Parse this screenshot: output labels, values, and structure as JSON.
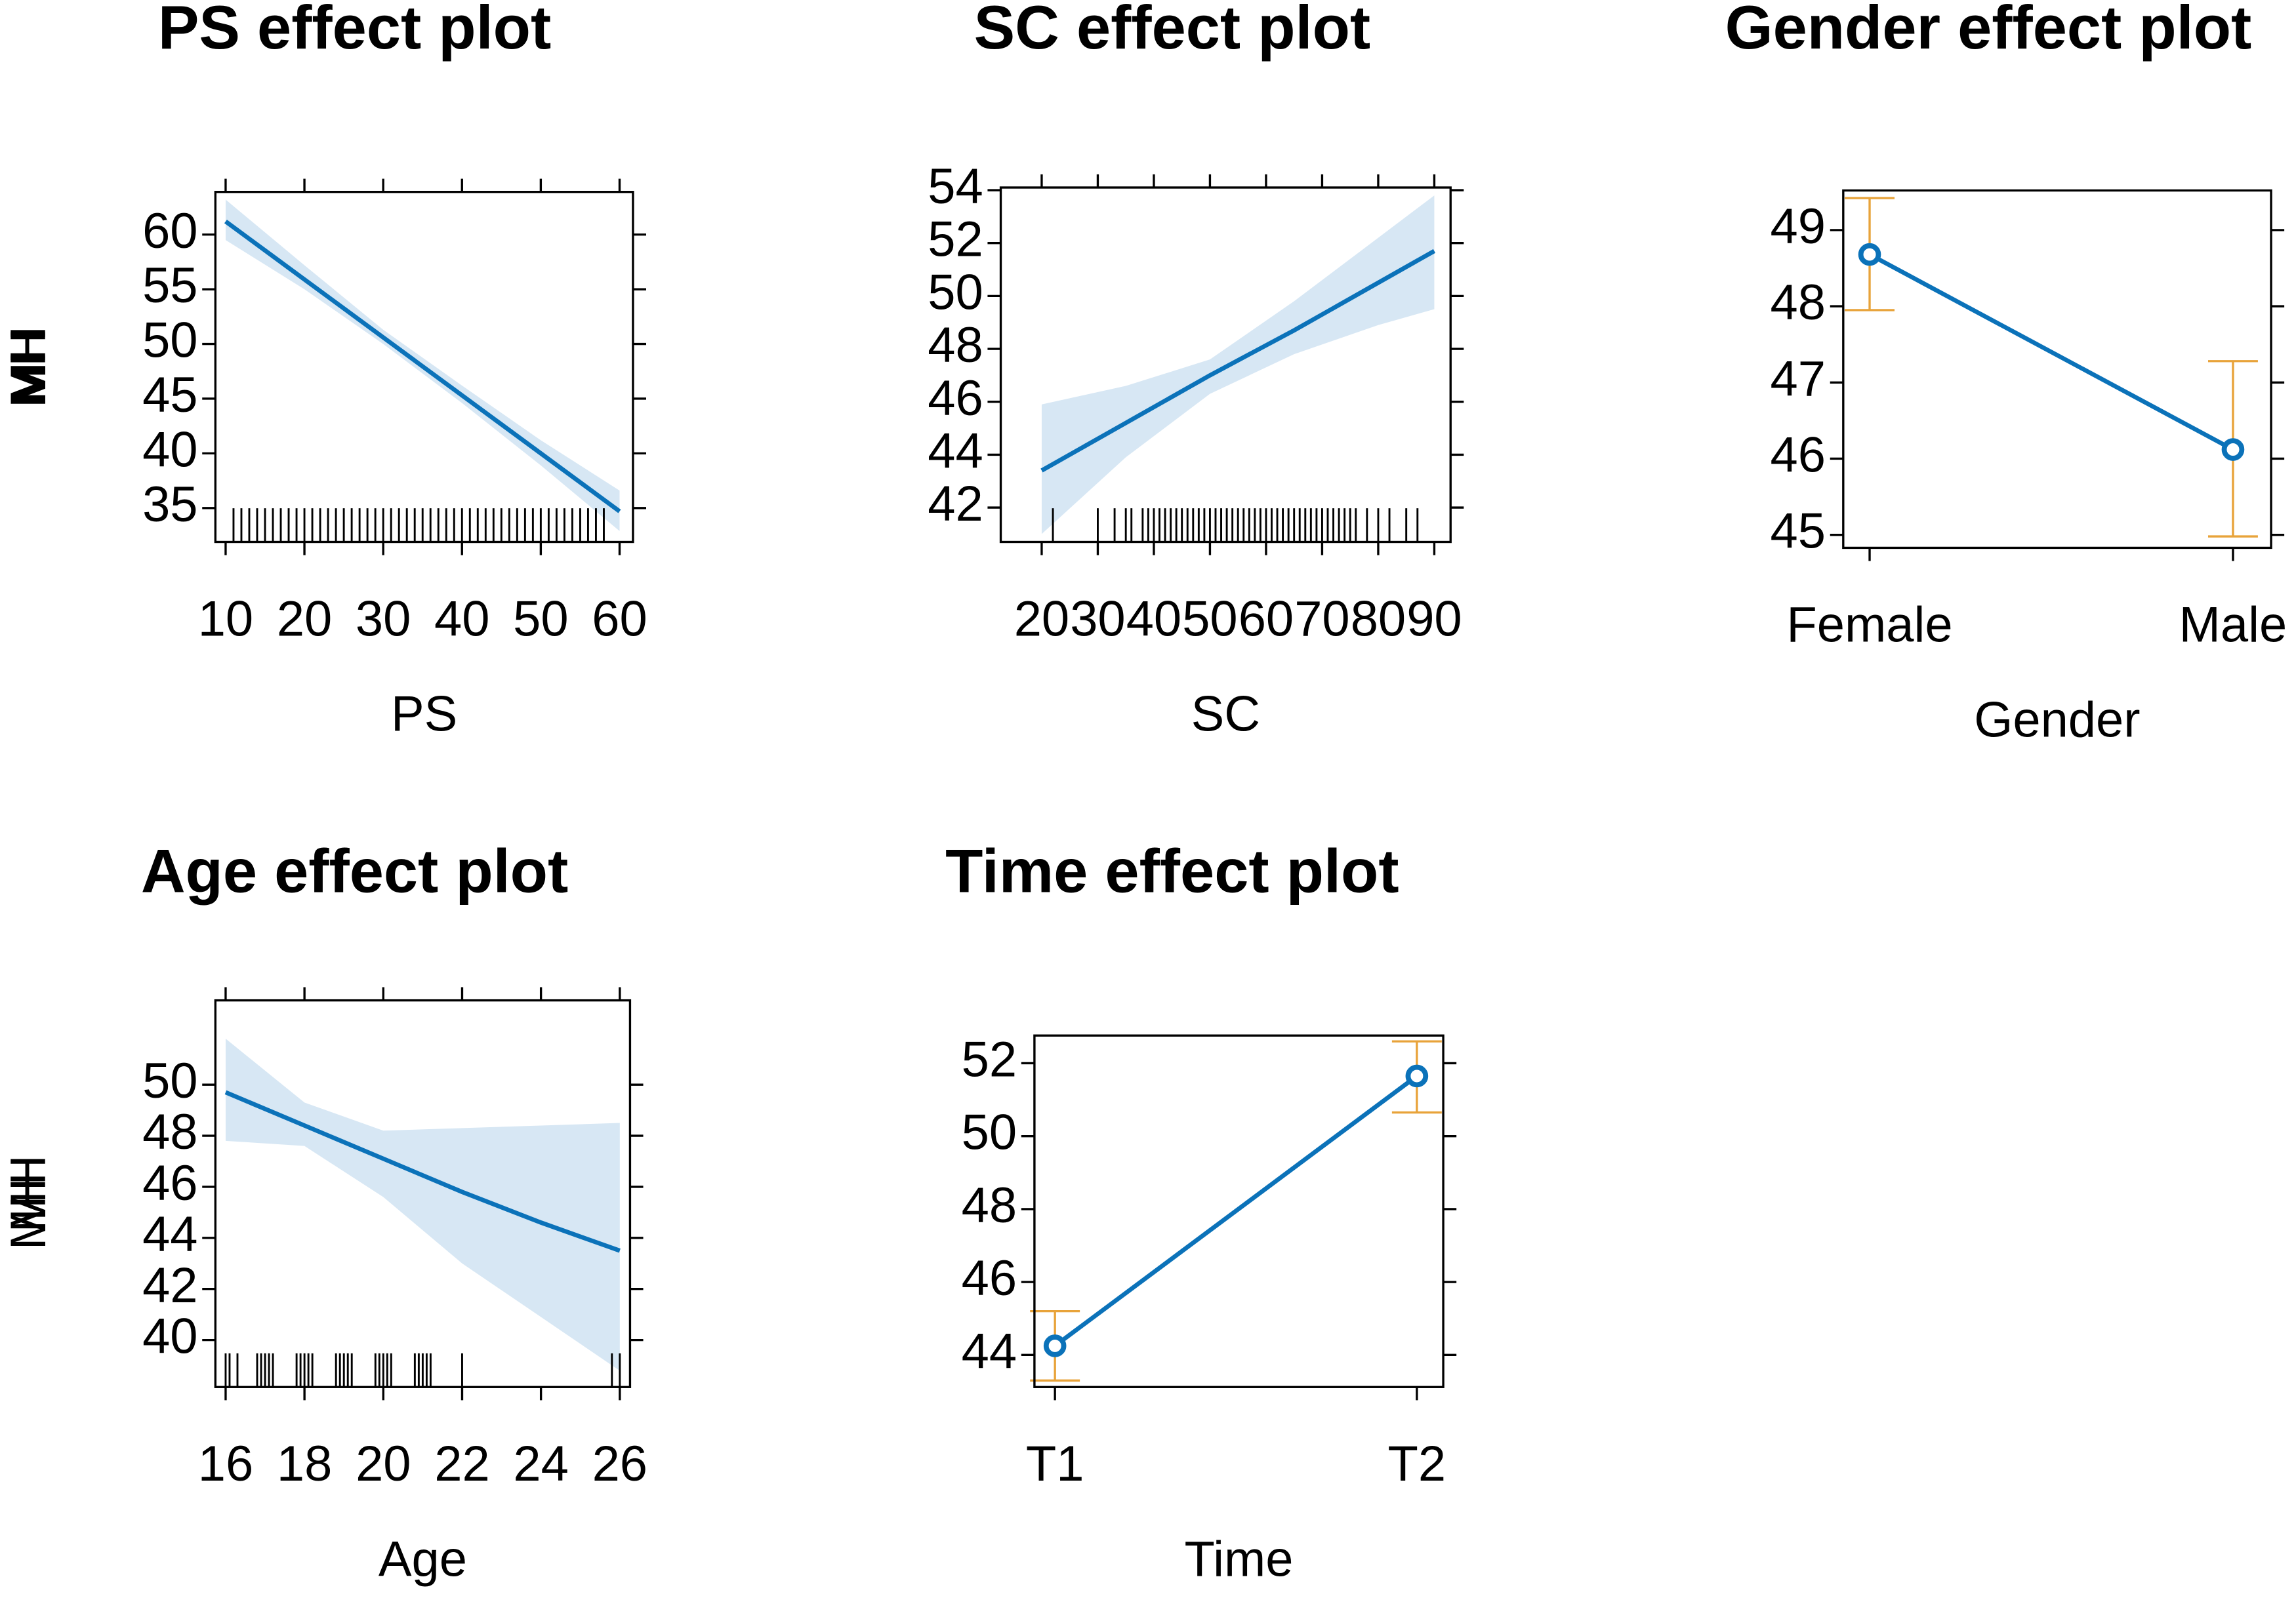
{
  "chart_data": [
    {
      "type": "line",
      "title": "PS effect plot",
      "x_label": "PS",
      "y_label": "MH",
      "x": [
        10,
        20,
        30,
        40,
        50,
        60
      ],
      "values": [
        61.2,
        55.9,
        50.6,
        45.3,
        40.0,
        34.7
      ],
      "lower": [
        59.5,
        55.0,
        50.0,
        44.6,
        38.9,
        32.9
      ],
      "upper": [
        63.2,
        57.2,
        51.3,
        46.2,
        41.2,
        36.6
      ],
      "rug": [
        11,
        12,
        13,
        14,
        15,
        16,
        17,
        18,
        19,
        20,
        21,
        22,
        23,
        24,
        25,
        26,
        27,
        28,
        29,
        30,
        31,
        32,
        33,
        34,
        35,
        36,
        37,
        38,
        39,
        40,
        41,
        42,
        43,
        44,
        45,
        46,
        47,
        48,
        49,
        50,
        51,
        52,
        53,
        54,
        55,
        56,
        57,
        58
      ],
      "xlim": [
        8.7,
        61.7
      ],
      "ylim": [
        31.9,
        63.9
      ],
      "xticks": [
        10,
        20,
        30,
        40,
        50,
        60
      ],
      "yticks": [
        35,
        40,
        45,
        50,
        55,
        60
      ],
      "color": "#0b72b9",
      "band_color": "#d7e7f4"
    },
    {
      "type": "line",
      "title": "SC effect plot",
      "x_label": "SC",
      "y_label": "MH",
      "x": [
        20,
        35,
        50,
        65,
        80,
        90
      ],
      "values": [
        43.4,
        45.2,
        47.0,
        48.7,
        50.5,
        51.7
      ],
      "lower": [
        41.0,
        43.9,
        46.3,
        47.8,
        48.9,
        49.5
      ],
      "upper": [
        45.9,
        46.6,
        47.6,
        49.8,
        52.2,
        53.8
      ],
      "rug": [
        22,
        30,
        33,
        35,
        36,
        38,
        39,
        40,
        41,
        42,
        43,
        44,
        45,
        46,
        47,
        48,
        49,
        50,
        51,
        52,
        53,
        54,
        55,
        56,
        57,
        58,
        59,
        60,
        61,
        62,
        63,
        64,
        65,
        66,
        67,
        68,
        69,
        70,
        71,
        72,
        73,
        74,
        75,
        76,
        78,
        80,
        82,
        85,
        87
      ],
      "xlim": [
        12.7,
        92.9
      ],
      "ylim": [
        40.7,
        54.1
      ],
      "xticks": [
        20,
        30,
        40,
        50,
        60,
        70,
        80,
        90
      ],
      "yticks": [
        42,
        44,
        46,
        48,
        50,
        52,
        54
      ],
      "color": "#0b72b9",
      "band_color": "#d7e7f4"
    },
    {
      "type": "errorbar",
      "title": "Gender effect plot",
      "x_label": "Gender",
      "y_label": "MH",
      "categories": [
        "Female",
        "Male"
      ],
      "values": [
        48.68,
        46.12
      ],
      "lower": [
        47.95,
        44.98
      ],
      "upper": [
        49.42,
        47.28
      ],
      "ylim": [
        44.83,
        49.52
      ],
      "yticks": [
        45,
        46,
        47,
        48,
        49
      ],
      "color": "#0b72b9",
      "errorbar_color": "#e8a33a"
    },
    {
      "type": "line",
      "title": "Age effect plot",
      "x_label": "Age",
      "y_label": "MH",
      "x": [
        16,
        18,
        20,
        22,
        24,
        26
      ],
      "values": [
        49.7,
        48.4,
        47.1,
        45.8,
        44.6,
        43.5
      ],
      "lower": [
        47.8,
        47.6,
        45.6,
        43.0,
        40.9,
        38.8
      ],
      "upper": [
        51.8,
        49.3,
        48.2,
        48.3,
        48.4,
        48.5
      ],
      "rug": [
        16,
        16.1,
        16.3,
        16.8,
        16.9,
        17,
        17.1,
        17.2,
        17.8,
        17.9,
        18,
        18.1,
        18.2,
        18.8,
        18.9,
        19,
        19.1,
        19.2,
        19.8,
        19.9,
        20,
        20.1,
        20.2,
        20.8,
        20.9,
        21,
        21.1,
        21.2,
        22,
        25.8,
        26
      ],
      "xlim": [
        15.74,
        26.26
      ],
      "ylim": [
        38.16,
        53.3
      ],
      "xticks": [
        16,
        18,
        20,
        22,
        24,
        26
      ],
      "yticks": [
        40,
        42,
        44,
        46,
        48,
        50
      ],
      "color": "#0b72b9",
      "band_color": "#d7e7f4"
    },
    {
      "type": "errorbar",
      "title": "Time effect plot",
      "x_label": "Time",
      "y_label": "MH",
      "categories": [
        "T1",
        "T2"
      ],
      "values": [
        44.25,
        51.65
      ],
      "lower": [
        43.3,
        50.65
      ],
      "upper": [
        45.2,
        52.6
      ],
      "ylim": [
        43.12,
        52.76
      ],
      "yticks": [
        44,
        46,
        48,
        50,
        52
      ],
      "color": "#0b72b9",
      "errorbar_color": "#e8a33a"
    }
  ]
}
